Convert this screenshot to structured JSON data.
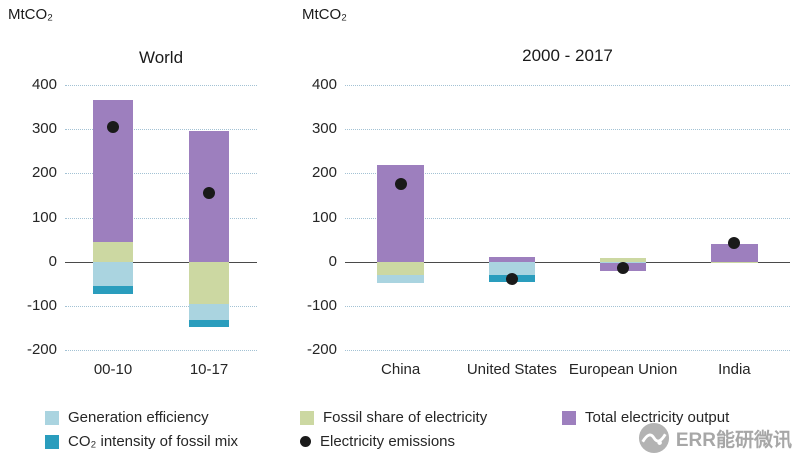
{
  "watermark": {
    "text": "ERR能研微讯",
    "color": "#9e9e9e"
  },
  "legend": {
    "items": [
      {
        "label": "Generation efficiency",
        "color": "#aad4e0",
        "shape": "square"
      },
      {
        "label": "Fossil share of electricity",
        "color": "#ccd8a2",
        "shape": "square"
      },
      {
        "label": "Total electricity output",
        "color": "#9d7fbe",
        "shape": "square"
      },
      {
        "label": "CO₂ intensity of fossil mix",
        "color": "#2a9dbd",
        "shape": "square"
      },
      {
        "label": "Electricity emissions",
        "color": "#1a1a1a",
        "shape": "dot"
      }
    ]
  },
  "chart_data": [
    {
      "type": "bar",
      "variant": "stacked-bar-with-points",
      "title": "World",
      "unit_label": "MtCO₂",
      "categories": [
        "00-10",
        "10-17"
      ],
      "ylim": [
        -200,
        400
      ],
      "yticks": [
        400,
        300,
        200,
        100,
        0,
        -100,
        -200
      ],
      "grid": "horizontal-dotted",
      "series": [
        {
          "name": "Fossil share of electricity",
          "color": "#ccd8a2",
          "values": [
            45,
            -95
          ]
        },
        {
          "name": "Generation efficiency",
          "color": "#aad4e0",
          "values": [
            -55,
            -37
          ]
        },
        {
          "name": "CO₂ intensity of fossil mix",
          "color": "#2a9dbd",
          "values": [
            -18,
            -16
          ]
        },
        {
          "name": "Total electricity output",
          "color": "#9d7fbe",
          "values": [
            320,
            295
          ]
        }
      ],
      "points": {
        "name": "Electricity emissions",
        "color": "#1a1a1a",
        "values": [
          305,
          155
        ]
      }
    },
    {
      "type": "bar",
      "variant": "stacked-bar-with-points",
      "title": "2000 - 2017",
      "unit_label": "MtCO₂",
      "categories": [
        "China",
        "United States",
        "European Union",
        "India"
      ],
      "ylim": [
        -200,
        400
      ],
      "yticks": [
        400,
        300,
        200,
        100,
        0,
        -100,
        -200
      ],
      "grid": "horizontal-dotted",
      "series": [
        {
          "name": "Fossil share of electricity",
          "color": "#ccd8a2",
          "values": [
            -30,
            0,
            8,
            -4
          ]
        },
        {
          "name": "Generation efficiency",
          "color": "#aad4e0",
          "values": [
            -18,
            -30,
            -4,
            0
          ]
        },
        {
          "name": "CO₂ intensity of fossil mix",
          "color": "#2a9dbd",
          "values": [
            0,
            -16,
            0,
            0
          ]
        },
        {
          "name": "Total electricity output",
          "color": "#9d7fbe",
          "values": [
            220,
            10,
            -17,
            40
          ]
        }
      ],
      "points": {
        "name": "Electricity emissions",
        "color": "#1a1a1a",
        "values": [
          175,
          -40,
          -15,
          42
        ]
      }
    }
  ]
}
